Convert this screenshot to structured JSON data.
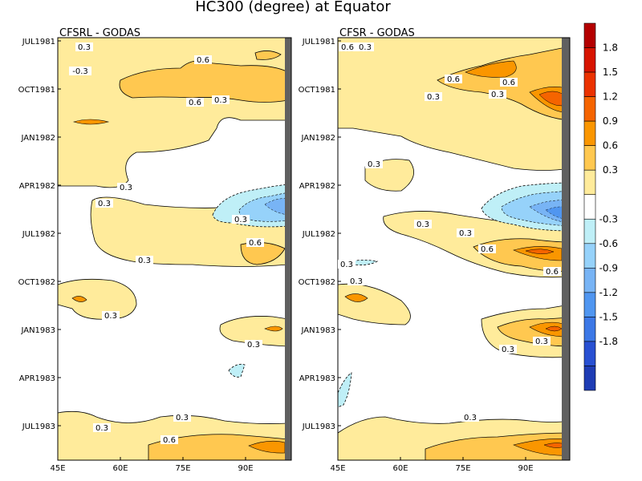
{
  "chart_data": {
    "type": "heatmap",
    "title": "HC300 (degree) at Equator",
    "panels": [
      {
        "title": "CFSRL - GODAS",
        "xticks": [
          "45E",
          "60E",
          "75E",
          "90E"
        ],
        "yticks": [
          "JUL1981",
          "OCT1981",
          "JAN1982",
          "APR1982",
          "JUL1982",
          "OCT1982",
          "JAN1983",
          "APR1983",
          "JUL1983"
        ],
        "contour_labels": [
          "0.3",
          "0.6",
          "0.6",
          "0.3",
          "0.3",
          "0.3",
          "0.3",
          "0.6",
          "0.3",
          "0.3",
          "0.3",
          "0.3",
          "0.3",
          "0.6",
          "-0.3"
        ]
      },
      {
        "title": "CFSR - GODAS",
        "xticks": [
          "45E",
          "60E",
          "75E",
          "90E"
        ],
        "yticks": [
          "JUL1981",
          "OCT1981",
          "JAN1982",
          "APR1982",
          "JUL1982",
          "OCT1982",
          "JAN1983",
          "APR1983",
          "JUL1983"
        ],
        "contour_labels": [
          "0.6",
          "0.3",
          "0.6",
          "0.6",
          "0.3",
          "0.3",
          "0.3",
          "0.3",
          "0.6",
          "0.3",
          "0.3",
          "0.3",
          "0.6",
          "0.3",
          "0.3",
          "0.3"
        ]
      }
    ],
    "x_range": [
      "45E",
      "100E"
    ],
    "y_range": [
      "JUL1981",
      "OCT1983"
    ],
    "colorbar": {
      "labels": [
        "1.8",
        "1.5",
        "1.2",
        "0.9",
        "0.6",
        "0.3",
        "-0.3",
        "-0.6",
        "-0.9",
        "-1.2",
        "-1.5",
        "-1.8"
      ],
      "colors": [
        "#b40000",
        "#d71400",
        "#eb3200",
        "#f56400",
        "#fa9600",
        "#ffc850",
        "#ffeb9b",
        "#ffffff",
        "#bfeff7",
        "#96d2fa",
        "#78b4f5",
        "#5096f0",
        "#3c78e6",
        "#2850d2",
        "#1e3cb4"
      ]
    }
  }
}
